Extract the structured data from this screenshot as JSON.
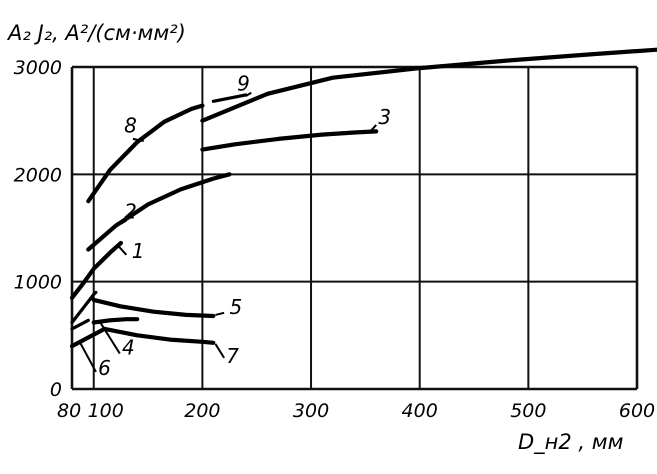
{
  "chart_data": {
    "type": "line",
    "title": "",
    "ylabel": "A₂ J₂, A²/(см·мм²)",
    "xlabel": "D_н2 , мм",
    "xlim": [
      80,
      600
    ],
    "ylim": [
      0,
      3000
    ],
    "x_ticks": [
      {
        "value": 80,
        "label": "80"
      },
      {
        "value": 100,
        "label": "100"
      },
      {
        "value": 200,
        "label": "200"
      },
      {
        "value": 300,
        "label": "300"
      },
      {
        "value": 400,
        "label": "400"
      },
      {
        "value": 500,
        "label": "500"
      },
      {
        "value": 600,
        "label": "600"
      }
    ],
    "y_ticks": [
      {
        "value": 0,
        "label": "0"
      },
      {
        "value": 1000,
        "label": "1000"
      },
      {
        "value": 2000,
        "label": "2000"
      },
      {
        "value": 3000,
        "label": "3000"
      }
    ],
    "grid": true,
    "series": [
      {
        "name": "1",
        "x": [
          80,
          90,
          100,
          115,
          125
        ],
        "y": [
          850,
          980,
          1120,
          1270,
          1360
        ],
        "label_at": [
          135,
          1220
        ],
        "leader_from": [
          130,
          1250
        ],
        "leader_to": [
          122,
          1340
        ]
      },
      {
        "name": "2",
        "x": [
          95,
          120,
          150,
          180,
          210,
          225
        ],
        "y": [
          1300,
          1520,
          1720,
          1860,
          1960,
          2000
        ],
        "label_at": [
          128,
          1590
        ],
        "leader_from": [
          130,
          1570
        ],
        "leader_to": [
          125,
          1540
        ]
      },
      {
        "name": "3",
        "x": [
          200,
          230,
          270,
          310,
          340,
          360
        ],
        "y": [
          2230,
          2280,
          2330,
          2370,
          2390,
          2400
        ],
        "label_at": [
          362,
          2470
        ],
        "leader_from": [
          360,
          2460
        ],
        "leader_to": [
          355,
          2405
        ]
      },
      {
        "name": "4",
        "x": [
          100,
          115,
          130,
          140
        ],
        "y": [
          620,
          640,
          650,
          650
        ],
        "label_at": [
          126,
          320
        ],
        "leader_from": [
          124,
          330
        ],
        "leader_to": [
          106,
          620
        ]
      },
      {
        "name": "5",
        "x": [
          100,
          125,
          155,
          185,
          210
        ],
        "y": [
          830,
          770,
          720,
          690,
          680
        ],
        "label_at": [
          225,
          700
        ],
        "leader_from": [
          220,
          710
        ],
        "leader_to": [
          212,
          690
        ]
      },
      {
        "name": "6",
        "x": [
          80,
          95,
          110
        ],
        "y": [
          400,
          480,
          560
        ],
        "label_at": [
          104,
          130
        ],
        "leader_from": [
          102,
          160
        ],
        "leader_to": [
          87,
          440
        ]
      },
      {
        "name": "7",
        "x": [
          110,
          140,
          170,
          200,
          210
        ],
        "y": [
          560,
          500,
          460,
          440,
          430
        ],
        "label_at": [
          222,
          240
        ],
        "leader_from": [
          220,
          290
        ],
        "leader_to": [
          212,
          420
        ]
      },
      {
        "name": "8",
        "x": [
          95,
          115,
          140,
          165,
          190,
          200
        ],
        "y": [
          1750,
          2040,
          2300,
          2490,
          2610,
          2640
        ],
        "label_at": [
          128,
          2390
        ],
        "leader_from": [
          136,
          2330
        ],
        "leader_to": [
          146,
          2310
        ]
      },
      {
        "name": "9",
        "x": [
          200,
          260,
          320,
          400,
          480,
          560,
          630
        ],
        "y": [
          2500,
          2750,
          2900,
          2990,
          3060,
          3120,
          3170
        ],
        "label_at": [
          232,
          2780
        ],
        "leader_from": [
          240,
          2730
        ],
        "leader_to": [
          245,
          2760
        ]
      }
    ],
    "extra_segments": [
      {
        "series": "1",
        "x": [
          80,
          100
        ],
        "y": [
          620,
          880
        ]
      },
      {
        "series": "5",
        "x": [
          100,
          102
        ],
        "y": [
          880,
          900
        ]
      },
      {
        "series": "6",
        "x": [
          80,
          95
        ],
        "y": [
          560,
          640
        ]
      },
      {
        "series": "8",
        "x": [
          210,
          240
        ],
        "y": [
          2680,
          2740
        ]
      }
    ]
  }
}
